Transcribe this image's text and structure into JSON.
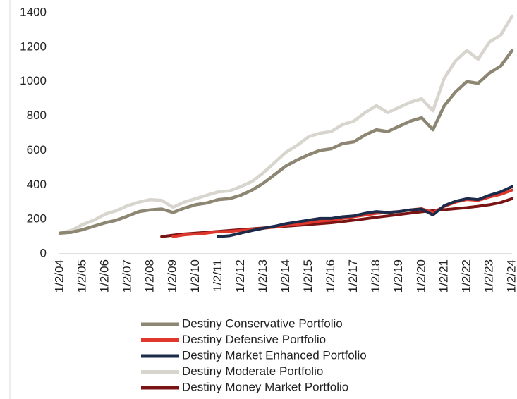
{
  "chart_data": {
    "type": "line",
    "categories": [
      "1/2/04",
      null,
      "1/2/05",
      null,
      "1/2/06",
      null,
      "1/2/07",
      null,
      "1/2/08",
      null,
      "1/2/09",
      null,
      "1/2/10",
      null,
      "1/2/11",
      null,
      "1/2/12",
      null,
      "1/2/13",
      null,
      "1/2/14",
      null,
      "1/2/15",
      null,
      "1/2/16",
      null,
      "1/2/17",
      null,
      "1/2/18",
      null,
      "1/2/19",
      null,
      "1/2/20",
      null,
      "1/2/21",
      null,
      "1/2/22",
      null,
      "1/2/23",
      null,
      "1/2/24"
    ],
    "series": [
      {
        "name": "Destiny Conservative Portfolio",
        "color": "#8c8672",
        "values": [
          120,
          125,
          140,
          160,
          180,
          195,
          220,
          245,
          255,
          260,
          240,
          265,
          285,
          295,
          315,
          320,
          340,
          370,
          410,
          460,
          510,
          545,
          575,
          600,
          610,
          640,
          650,
          690,
          720,
          710,
          740,
          770,
          790,
          720,
          860,
          940,
          1000,
          990,
          1050,
          1090,
          1180
        ]
      },
      {
        "name": "Destiny Defensive Portfolio",
        "color": "#e0372c",
        "values": [
          null,
          null,
          null,
          null,
          null,
          null,
          null,
          null,
          null,
          null,
          100,
          110,
          115,
          120,
          128,
          130,
          135,
          140,
          148,
          155,
          165,
          172,
          180,
          190,
          195,
          205,
          215,
          225,
          235,
          240,
          245,
          255,
          262,
          240,
          275,
          300,
          315,
          310,
          330,
          345,
          370
        ]
      },
      {
        "name": "Destiny Market Enhanced Portfolio",
        "color": "#1c2b4a",
        "values": [
          null,
          null,
          null,
          null,
          null,
          null,
          null,
          null,
          null,
          null,
          null,
          null,
          null,
          null,
          100,
          105,
          120,
          135,
          148,
          160,
          175,
          185,
          195,
          205,
          205,
          215,
          220,
          235,
          245,
          240,
          245,
          255,
          260,
          225,
          280,
          305,
          320,
          315,
          340,
          360,
          390
        ]
      },
      {
        "name": "Destiny Moderate Portfolio",
        "color": "#d8d5ce",
        "values": [
          120,
          135,
          170,
          195,
          230,
          250,
          280,
          300,
          315,
          310,
          270,
          300,
          320,
          340,
          360,
          365,
          390,
          420,
          470,
          530,
          590,
          630,
          680,
          700,
          710,
          750,
          770,
          820,
          860,
          820,
          850,
          880,
          900,
          830,
          1020,
          1120,
          1180,
          1130,
          1230,
          1270,
          1380
        ]
      },
      {
        "name": "Destiny Money Market Portfolio",
        "color": "#7a1414",
        "values": [
          null,
          null,
          null,
          null,
          null,
          null,
          null,
          null,
          null,
          100,
          108,
          115,
          120,
          125,
          130,
          135,
          140,
          145,
          150,
          155,
          160,
          165,
          170,
          175,
          180,
          187,
          195,
          203,
          212,
          220,
          228,
          236,
          244,
          250,
          256,
          262,
          268,
          276,
          285,
          298,
          320
        ]
      }
    ],
    "ylim": [
      0,
      1400
    ],
    "yticks": [
      0,
      200,
      400,
      600,
      800,
      1000,
      1200,
      1400
    ],
    "legend": "bottom"
  }
}
